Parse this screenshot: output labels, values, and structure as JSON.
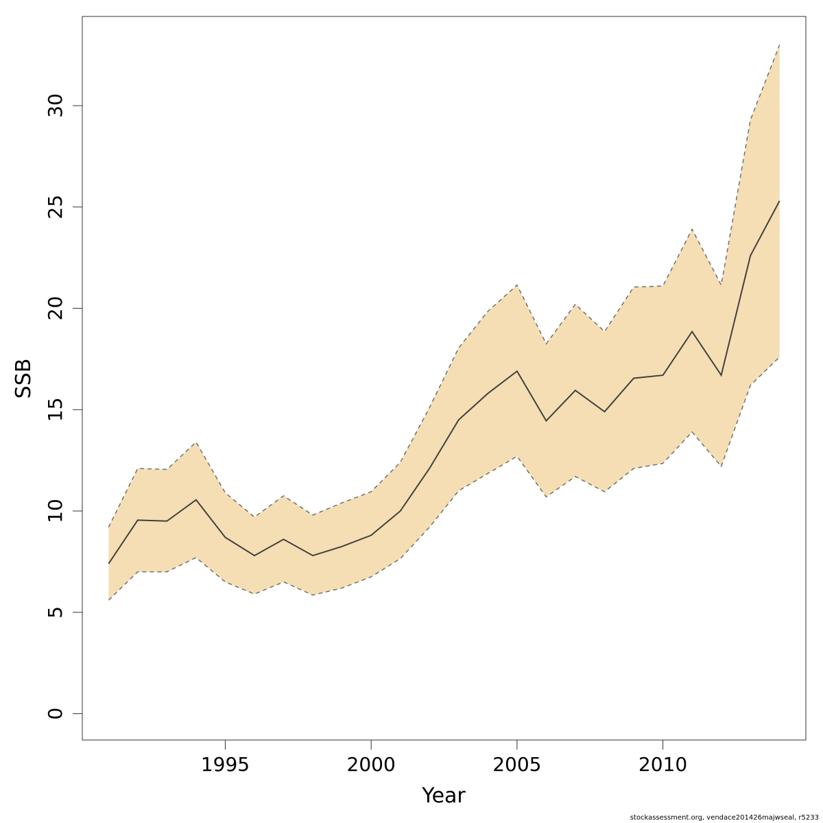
{
  "chart_data": {
    "type": "area",
    "xlabel": "Year",
    "ylabel": "SSB",
    "xlim": [
      1990.1,
      2014.9
    ],
    "ylim": [
      -1.3,
      34.4
    ],
    "xticks": [
      1995,
      2000,
      2005,
      2010
    ],
    "yticks": [
      0,
      5,
      10,
      15,
      20,
      25,
      30
    ],
    "x": [
      1991,
      1992,
      1993,
      1994,
      1995,
      1996,
      1997,
      1998,
      1999,
      2000,
      2001,
      2002,
      2003,
      2004,
      2005,
      2006,
      2007,
      2008,
      2009,
      2010,
      2011,
      2012,
      2013,
      2014
    ],
    "series": [
      {
        "role": "estimate",
        "values": [
          7.4,
          9.55,
          9.5,
          10.55,
          8.7,
          7.8,
          8.6,
          7.8,
          8.25,
          8.8,
          10.0,
          12.1,
          14.5,
          15.8,
          16.9,
          14.45,
          15.95,
          14.9,
          16.55,
          16.7,
          18.85,
          16.7,
          22.6,
          25.3
        ],
        "color": "#404040",
        "style": "solid"
      },
      {
        "role": "upper-bound",
        "values": [
          9.2,
          12.1,
          12.05,
          13.4,
          10.9,
          9.7,
          10.75,
          9.8,
          10.4,
          10.95,
          12.4,
          15.1,
          18.05,
          19.85,
          21.15,
          18.25,
          20.2,
          18.85,
          21.05,
          21.1,
          23.9,
          21.15,
          29.3,
          33.0
        ],
        "color": "#707070",
        "style": "dashed"
      },
      {
        "role": "lower-bound",
        "values": [
          5.6,
          7.0,
          7.0,
          7.7,
          6.5,
          5.9,
          6.5,
          5.85,
          6.2,
          6.75,
          7.65,
          9.2,
          11.0,
          11.85,
          12.7,
          10.7,
          11.7,
          10.95,
          12.1,
          12.35,
          13.9,
          12.2,
          16.2,
          17.6
        ],
        "color": "#707070",
        "style": "dashed"
      }
    ],
    "band_color": "#f5deb3",
    "grid": false,
    "legend": "none"
  },
  "footer": {
    "note": "stockassessment.org, vendace201426majwseal, r5233"
  }
}
